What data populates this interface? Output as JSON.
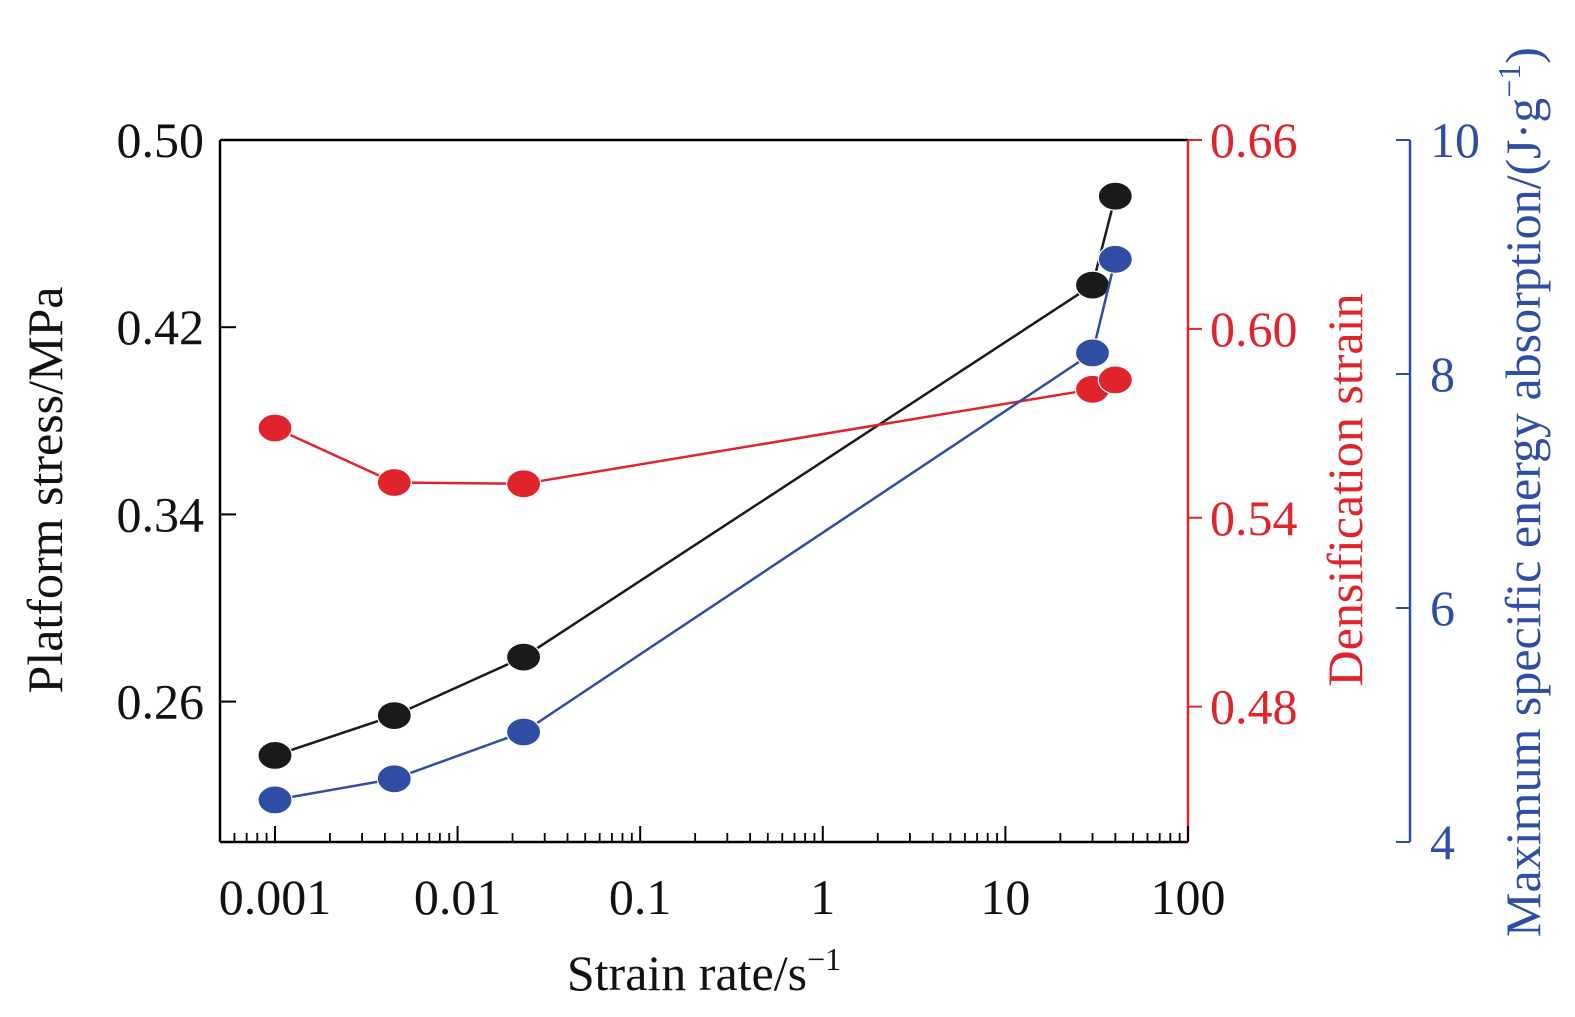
{
  "chart_data": {
    "type": "line",
    "x_scale": "log",
    "xlabel_text": "Strain rate/s",
    "xlabel_sup": "−1",
    "x_range": [
      0.0005,
      100
    ],
    "x_ticks": [
      0.001,
      0.01,
      0.1,
      1,
      10,
      100
    ],
    "x_tick_labels": [
      "0.001",
      "0.01",
      "0.1",
      "1",
      "10",
      "100"
    ],
    "axes": {
      "left": {
        "label": "Platform stress/MPa",
        "color": "#1a1a1a",
        "range": [
          0.2,
          0.5
        ],
        "ticks": [
          0.26,
          0.34,
          0.42,
          0.5
        ],
        "tick_labels": [
          "0.26",
          "0.34",
          "0.42",
          "0.50"
        ]
      },
      "right1": {
        "label": "Densification strain",
        "color": "#e0242b",
        "range": [
          0.437,
          0.66
        ],
        "ticks": [
          0.48,
          0.54,
          0.6,
          0.66
        ],
        "tick_labels": [
          "0.48",
          "0.54",
          "0.60",
          "0.66"
        ]
      },
      "right2": {
        "label_text": "Maximum specific energy absorption/(J·g",
        "label_sup": "−1",
        "label_end": ")",
        "color": "#2f4ea3",
        "range": [
          4,
          10
        ],
        "ticks": [
          4,
          6,
          8,
          10
        ],
        "tick_labels": [
          "4",
          "6",
          "8",
          "10"
        ]
      }
    },
    "series": [
      {
        "axis": "left",
        "color": "#1a1a1a",
        "x": [
          0.001,
          0.0045,
          0.023,
          30,
          40
        ],
        "y": [
          0.237,
          0.254,
          0.279,
          0.438,
          0.476
        ]
      },
      {
        "axis": "right1",
        "color": "#e0242b",
        "x": [
          0.001,
          0.0045,
          0.023,
          30,
          40
        ],
        "y": [
          0.5685,
          0.5512,
          0.5508,
          0.5808,
          0.5838
        ]
      },
      {
        "axis": "right2",
        "color": "#2f4ea3",
        "x": [
          0.001,
          0.0045,
          0.023,
          30,
          40
        ],
        "y": [
          4.36,
          4.54,
          4.94,
          8.18,
          8.98
        ]
      }
    ]
  }
}
